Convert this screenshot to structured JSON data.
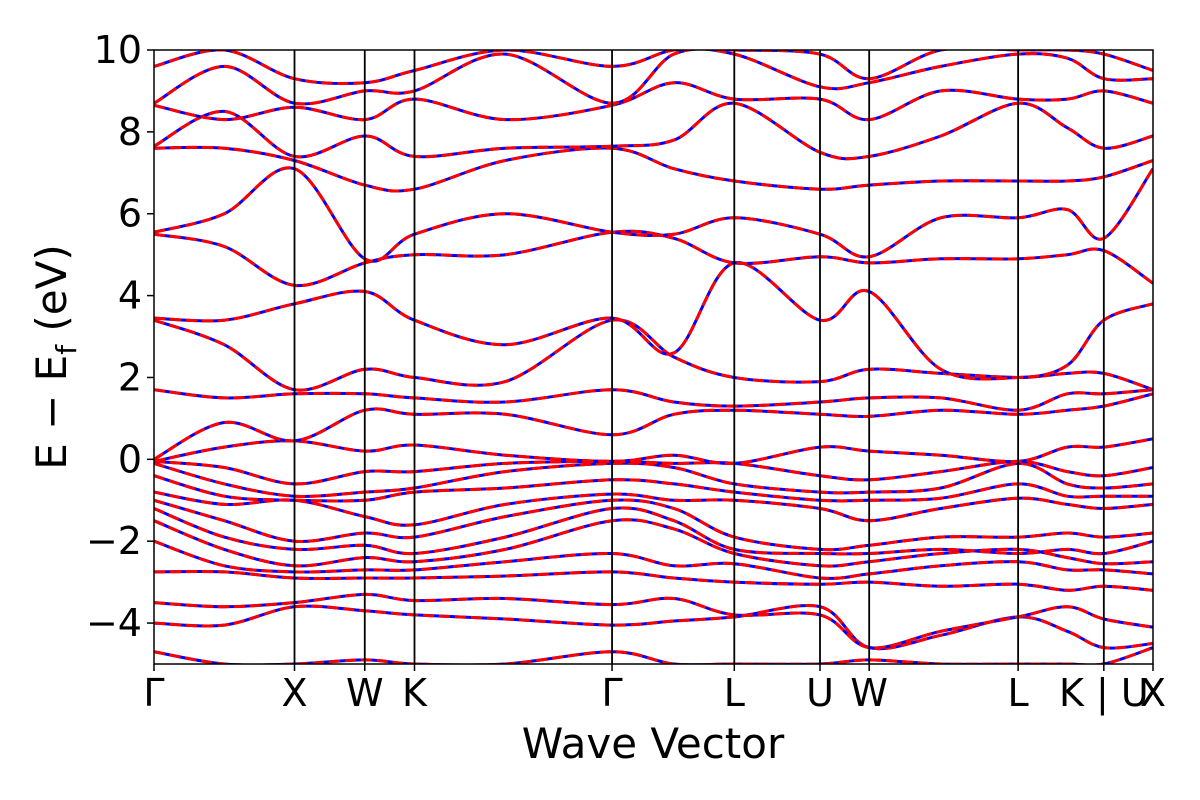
{
  "chart_data": {
    "type": "line",
    "title": "",
    "xlabel": "Wave Vector",
    "ylabel_parts": {
      "main": "E − E",
      "subscript": "f",
      "suffix": " (eV)"
    },
    "ylim": [
      -5,
      10
    ],
    "yticks": [
      -4,
      -2,
      0,
      2,
      4,
      6,
      8,
      10
    ],
    "ytick_labels": [
      "−4",
      "−2",
      "0",
      "2",
      "4",
      "6",
      "8",
      "10"
    ],
    "grid": false,
    "legend": "none",
    "kpath_labels": [
      "Γ",
      "X",
      "W",
      "K",
      "Γ",
      "L",
      "U",
      "W",
      "L",
      "K | U",
      "X"
    ],
    "kpath_positions": [
      0,
      1.0,
      1.5,
      1.854,
      3.26,
      4.13,
      4.74,
      5.09,
      6.15,
      6.76,
      7.11
    ],
    "series_styles": [
      {
        "color": "#0000ff",
        "dash": "none"
      },
      {
        "color": "#ff0000",
        "dash": "dashed"
      }
    ],
    "bands": [
      {
        "x": [
          0,
          0.5,
          1.0,
          1.5,
          1.854,
          2.5,
          3.26,
          3.7,
          4.13,
          4.74,
          5.09,
          5.6,
          6.15,
          6.5,
          6.76,
          7.11
        ],
        "y": [
          -4.7,
          -5.0,
          -5.0,
          -4.9,
          -5.0,
          -5.0,
          -4.7,
          -5.0,
          -5.0,
          -5.0,
          -4.9,
          -5.0,
          -5.0,
          -5.0,
          -5.0,
          -4.6
        ]
      },
      {
        "x": [
          0,
          0.5,
          1.0,
          1.5,
          1.854,
          2.5,
          3.26,
          3.7,
          4.13,
          4.74,
          5.09,
          5.6,
          6.15,
          6.5,
          6.76,
          7.11
        ],
        "y": [
          -4.0,
          -4.05,
          -3.6,
          -3.7,
          -3.8,
          -3.9,
          -4.05,
          -3.95,
          -3.85,
          -3.6,
          -4.6,
          -4.3,
          -3.85,
          -4.2,
          -4.6,
          -4.5
        ]
      },
      {
        "x": [
          0,
          0.5,
          1.0,
          1.5,
          1.854,
          2.5,
          3.26,
          3.7,
          4.13,
          4.74,
          5.09,
          5.6,
          6.15,
          6.5,
          6.76,
          7.11
        ],
        "y": [
          -3.5,
          -3.6,
          -3.5,
          -3.3,
          -3.45,
          -3.4,
          -3.55,
          -3.4,
          -3.8,
          -3.8,
          -4.6,
          -4.2,
          -3.85,
          -3.6,
          -3.9,
          -4.1
        ]
      },
      {
        "x": [
          0,
          0.5,
          1.0,
          1.5,
          1.854,
          2.5,
          3.26,
          3.7,
          4.13,
          4.74,
          5.09,
          5.6,
          6.15,
          6.5,
          6.76,
          7.11
        ],
        "y": [
          -2.75,
          -2.75,
          -2.9,
          -2.9,
          -2.9,
          -2.85,
          -2.75,
          -2.9,
          -3.0,
          -3.05,
          -3.0,
          -3.1,
          -3.05,
          -3.2,
          -3.1,
          -3.2
        ]
      },
      {
        "x": [
          0,
          0.5,
          1.0,
          1.5,
          1.854,
          2.5,
          3.26,
          3.7,
          4.13,
          4.74,
          5.09,
          5.6,
          6.15,
          6.5,
          6.76,
          7.11
        ],
        "y": [
          -2.0,
          -2.6,
          -2.75,
          -2.7,
          -2.7,
          -2.5,
          -2.3,
          -2.6,
          -2.55,
          -2.9,
          -2.8,
          -2.6,
          -2.5,
          -2.7,
          -2.7,
          -2.8
        ]
      },
      {
        "x": [
          0,
          0.5,
          1.0,
          1.5,
          1.854,
          2.5,
          3.26,
          3.7,
          4.13,
          4.74,
          5.09,
          5.6,
          6.15,
          6.5,
          6.76,
          7.11
        ],
        "y": [
          -1.5,
          -2.2,
          -2.6,
          -2.4,
          -2.5,
          -2.2,
          -1.5,
          -1.7,
          -2.3,
          -2.6,
          -2.5,
          -2.3,
          -2.2,
          -2.4,
          -2.55,
          -2.5
        ]
      },
      {
        "x": [
          0,
          0.5,
          1.0,
          1.5,
          1.854,
          2.5,
          3.26,
          3.7,
          4.13,
          4.74,
          5.09,
          5.6,
          6.15,
          6.5,
          6.76,
          7.11
        ],
        "y": [
          -1.2,
          -1.9,
          -2.2,
          -2.1,
          -2.3,
          -1.9,
          -1.2,
          -1.5,
          -2.2,
          -2.3,
          -2.3,
          -2.2,
          -2.3,
          -2.2,
          -2.3,
          -2.0
        ]
      },
      {
        "x": [
          0,
          0.5,
          1.0,
          1.5,
          1.854,
          2.5,
          3.26,
          3.7,
          4.13,
          4.74,
          5.09,
          5.6,
          6.15,
          6.5,
          6.76,
          7.11
        ],
        "y": [
          -1.0,
          -1.5,
          -2.0,
          -1.8,
          -1.9,
          -1.4,
          -1.0,
          -1.2,
          -1.9,
          -2.2,
          -2.1,
          -1.9,
          -1.9,
          -1.8,
          -1.9,
          -1.8
        ]
      },
      {
        "x": [
          0,
          0.5,
          1.0,
          1.5,
          1.854,
          2.5,
          3.26,
          3.7,
          4.13,
          4.74,
          5.09,
          5.6,
          6.15,
          6.5,
          6.76,
          7.11
        ],
        "y": [
          -0.8,
          -1.1,
          -1.0,
          -1.4,
          -1.6,
          -1.1,
          -0.85,
          -1.0,
          -1.0,
          -1.2,
          -1.5,
          -1.2,
          -0.95,
          -1.1,
          -1.2,
          -1.1
        ]
      },
      {
        "x": [
          0,
          0.5,
          1.0,
          1.5,
          1.854,
          2.5,
          3.26,
          3.7,
          4.13,
          4.74,
          5.09,
          5.6,
          6.15,
          6.5,
          6.76,
          7.11
        ],
        "y": [
          -0.4,
          -0.9,
          -1.0,
          -1.0,
          -0.8,
          -0.7,
          -0.5,
          -0.6,
          -0.8,
          -1.0,
          -1.0,
          -0.95,
          -0.6,
          -0.9,
          -0.9,
          -0.9
        ]
      },
      {
        "x": [
          0,
          0.5,
          1.0,
          1.5,
          1.854,
          2.5,
          3.26,
          3.7,
          4.13,
          4.74,
          5.09,
          5.6,
          6.15,
          6.5,
          6.76,
          7.11
        ],
        "y": [
          -0.1,
          -0.6,
          -0.9,
          -0.8,
          -0.7,
          -0.3,
          -0.1,
          -0.2,
          -0.6,
          -0.8,
          -0.8,
          -0.7,
          -0.1,
          -0.6,
          -0.7,
          -0.6
        ]
      },
      {
        "x": [
          0,
          0.5,
          1.0,
          1.5,
          1.854,
          2.5,
          3.26,
          3.7,
          4.13,
          4.74,
          5.09,
          5.6,
          6.15,
          6.5,
          6.76,
          7.11
        ],
        "y": [
          -0.05,
          -0.2,
          -0.6,
          -0.3,
          -0.3,
          -0.1,
          -0.05,
          -0.1,
          -0.1,
          -0.4,
          -0.5,
          -0.3,
          -0.05,
          -0.3,
          -0.4,
          -0.2
        ]
      },
      {
        "x": [
          0,
          0.5,
          1.0,
          1.5,
          1.854,
          2.5,
          3.26,
          3.7,
          4.13,
          4.74,
          5.09,
          5.6,
          6.15,
          6.5,
          6.76,
          7.11
        ],
        "y": [
          -0.05,
          0.3,
          0.45,
          0.2,
          0.35,
          0.1,
          -0.05,
          0.1,
          -0.1,
          0.3,
          0.2,
          0.1,
          -0.05,
          0.3,
          0.3,
          0.5
        ]
      },
      {
        "x": [
          0,
          0.5,
          1.0,
          1.5,
          1.854,
          2.5,
          3.26,
          3.7,
          4.13,
          4.74,
          5.09,
          5.6,
          6.15,
          6.5,
          6.76,
          7.11
        ],
        "y": [
          0.0,
          0.9,
          0.45,
          1.2,
          1.1,
          1.1,
          0.6,
          1.1,
          1.2,
          1.1,
          1.05,
          1.2,
          1.1,
          1.2,
          1.3,
          1.6
        ]
      },
      {
        "x": [
          0,
          0.5,
          1.0,
          1.5,
          1.854,
          2.5,
          3.26,
          3.7,
          4.13,
          4.74,
          5.09,
          5.6,
          6.15,
          6.5,
          6.76,
          7.11
        ],
        "y": [
          1.7,
          1.5,
          1.6,
          1.6,
          1.5,
          1.4,
          1.7,
          1.4,
          1.3,
          1.4,
          1.5,
          1.5,
          1.2,
          1.6,
          1.6,
          1.7
        ]
      },
      {
        "x": [
          0,
          0.5,
          1.0,
          1.5,
          1.854,
          2.5,
          3.26,
          3.7,
          4.13,
          4.74,
          5.09,
          5.6,
          6.15,
          6.5,
          6.76,
          7.11
        ],
        "y": [
          3.4,
          2.8,
          1.7,
          2.2,
          2.0,
          1.9,
          3.4,
          2.5,
          2.0,
          1.9,
          2.2,
          2.1,
          2.0,
          2.1,
          2.1,
          1.7
        ]
      },
      {
        "x": [
          0,
          0.5,
          1.0,
          1.5,
          1.854,
          2.5,
          3.26,
          3.7,
          4.13,
          4.74,
          5.09,
          5.6,
          6.15,
          6.5,
          6.76,
          7.11
        ],
        "y": [
          3.45,
          3.4,
          3.8,
          4.1,
          3.4,
          2.8,
          3.45,
          2.6,
          4.8,
          3.4,
          4.1,
          2.2,
          2.0,
          2.3,
          3.4,
          3.8
        ]
      },
      {
        "x": [
          0,
          0.5,
          1.0,
          1.5,
          1.854,
          2.5,
          3.26,
          3.7,
          4.13,
          4.74,
          5.09,
          5.6,
          6.15,
          6.5,
          6.76,
          7.11
        ],
        "y": [
          5.5,
          5.2,
          4.25,
          4.8,
          5.0,
          5.0,
          5.55,
          5.4,
          4.8,
          4.95,
          4.8,
          4.9,
          4.9,
          5.0,
          5.1,
          4.3
        ]
      },
      {
        "x": [
          0,
          0.5,
          1.0,
          1.5,
          1.854,
          2.5,
          3.26,
          3.7,
          4.13,
          4.74,
          5.09,
          5.6,
          6.15,
          6.5,
          6.76,
          7.11
        ],
        "y": [
          5.55,
          6.0,
          7.1,
          4.9,
          5.5,
          6.0,
          5.55,
          5.5,
          5.9,
          5.5,
          4.95,
          5.9,
          5.9,
          6.1,
          5.4,
          7.1
        ]
      },
      {
        "x": [
          0,
          0.5,
          1.0,
          1.5,
          1.854,
          2.5,
          3.26,
          3.7,
          4.13,
          4.74,
          5.09,
          5.6,
          6.15,
          6.5,
          6.76,
          7.11
        ],
        "y": [
          7.6,
          7.6,
          7.3,
          6.7,
          6.6,
          7.3,
          7.6,
          7.1,
          6.8,
          6.6,
          6.7,
          6.8,
          6.8,
          6.8,
          6.9,
          7.3
        ]
      },
      {
        "x": [
          0,
          0.5,
          1.0,
          1.5,
          1.854,
          2.5,
          3.26,
          3.7,
          4.13,
          4.74,
          5.09,
          5.6,
          6.15,
          6.5,
          6.76,
          7.11
        ],
        "y": [
          7.65,
          8.5,
          7.4,
          7.9,
          7.4,
          7.6,
          7.65,
          7.8,
          8.7,
          7.5,
          7.4,
          7.9,
          8.7,
          8.1,
          7.6,
          7.9
        ]
      },
      {
        "x": [
          0,
          0.5,
          1.0,
          1.5,
          1.854,
          2.5,
          3.26,
          3.7,
          4.13,
          4.74,
          5.09,
          5.6,
          6.15,
          6.5,
          6.76,
          7.11
        ],
        "y": [
          8.65,
          8.3,
          8.6,
          8.3,
          8.8,
          8.3,
          8.65,
          9.2,
          8.8,
          8.8,
          8.3,
          9.0,
          8.8,
          8.8,
          9.0,
          8.7
        ]
      },
      {
        "x": [
          0,
          0.5,
          1.0,
          1.5,
          1.854,
          2.5,
          3.26,
          3.7,
          4.13,
          4.74,
          5.09,
          5.6,
          6.15,
          6.5,
          6.76,
          7.11
        ],
        "y": [
          8.7,
          9.6,
          8.7,
          9.0,
          9.0,
          9.9,
          8.7,
          9.9,
          9.9,
          9.1,
          9.2,
          9.6,
          9.9,
          9.8,
          9.3,
          9.3
        ]
      },
      {
        "x": [
          0,
          0.5,
          1.0,
          1.5,
          1.854,
          2.5,
          3.26,
          3.7,
          4.13,
          4.74,
          5.09,
          5.6,
          6.15,
          6.5,
          6.76,
          7.11
        ],
        "y": [
          9.6,
          10.0,
          9.3,
          9.2,
          9.5,
          10.0,
          9.6,
          10.0,
          10.0,
          9.9,
          9.3,
          10.0,
          10.0,
          10.0,
          9.9,
          9.5
        ]
      }
    ]
  }
}
